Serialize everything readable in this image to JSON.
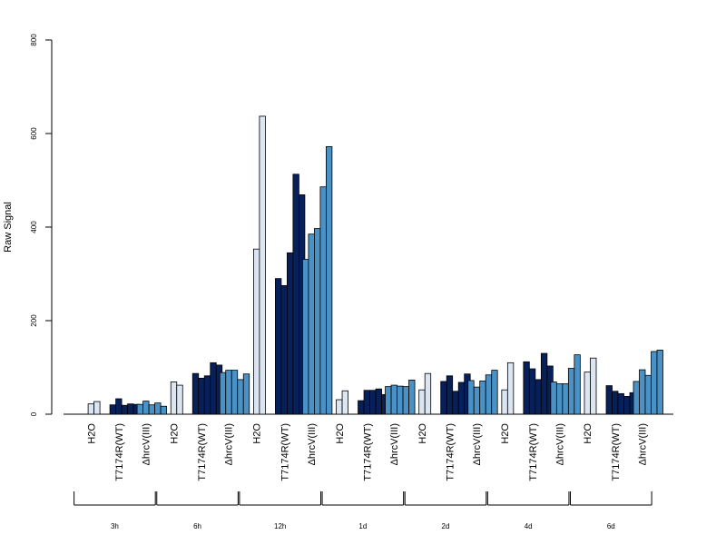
{
  "chart_data": {
    "type": "bar",
    "title": "",
    "xlabel": "",
    "ylabel": "Raw Signal",
    "ylim": [
      0,
      800
    ],
    "yticks": [
      0,
      200,
      400,
      600,
      800
    ],
    "grid": false,
    "legend": "none",
    "colors": {
      "H2O": "#dce6f2",
      "T7174R(WT)": "#08205a",
      "ΔhrcV(III)": "#4a92c6"
    },
    "groups": [
      {
        "time": "3h",
        "bars": [
          {
            "label": "H2O",
            "values": [
              22,
              27
            ]
          },
          {
            "label": "T7174R(WT)",
            "values": [
              20,
              33,
              19,
              22,
              21,
              20
            ]
          },
          {
            "label": "ΔhrcV(III)",
            "values": [
              21,
              28,
              20,
              24,
              17
            ]
          }
        ]
      },
      {
        "time": "6h",
        "bars": [
          {
            "label": "H2O",
            "values": [
              69,
              62
            ]
          },
          {
            "label": "T7174R(WT)",
            "values": [
              87,
              77,
              82,
              110,
              105
            ]
          },
          {
            "label": "ΔhrcV(III)",
            "values": [
              89,
              94,
              94,
              74,
              86
            ]
          }
        ]
      },
      {
        "time": "12h",
        "bars": [
          {
            "label": "H2O",
            "values": [
              353,
              637
            ]
          },
          {
            "label": "T7174R(WT)",
            "values": [
              290,
              275,
              345,
              513,
              469
            ]
          },
          {
            "label": "ΔhrcV(III)",
            "values": [
              331,
              385,
              397,
              486,
              572
            ]
          }
        ]
      },
      {
        "time": "1d",
        "bars": [
          {
            "label": "H2O",
            "values": [
              31,
              50
            ]
          },
          {
            "label": "T7174R(WT)",
            "values": [
              29,
              51,
              51,
              54,
              42
            ]
          },
          {
            "label": "ΔhrcV(III)",
            "values": [
              59,
              62,
              60,
              59,
              73
            ]
          }
        ]
      },
      {
        "time": "2d",
        "bars": [
          {
            "label": "H2O",
            "values": [
              52,
              87
            ]
          },
          {
            "label": "T7174R(WT)",
            "values": [
              70,
              82,
              49,
              68,
              86
            ]
          },
          {
            "label": "ΔhrcV(III)",
            "values": [
              72,
              58,
              71,
              84,
              94
            ]
          }
        ]
      },
      {
        "time": "4d",
        "bars": [
          {
            "label": "H2O",
            "values": [
              52,
              110
            ]
          },
          {
            "label": "T7174R(WT)",
            "values": [
              112,
              97,
              74,
              130,
              103
            ]
          },
          {
            "label": "ΔhrcV(III)",
            "values": [
              69,
              65,
              65,
              98,
              127
            ]
          }
        ]
      },
      {
        "time": "6d",
        "bars": [
          {
            "label": "H2O",
            "values": [
              90,
              120
            ]
          },
          {
            "label": "T7174R(WT)",
            "values": [
              61,
              49,
              44,
              38,
              46
            ]
          },
          {
            "label": "ΔhrcV(III)",
            "values": [
              70,
              95,
              83,
              134,
              137
            ]
          }
        ]
      }
    ]
  }
}
